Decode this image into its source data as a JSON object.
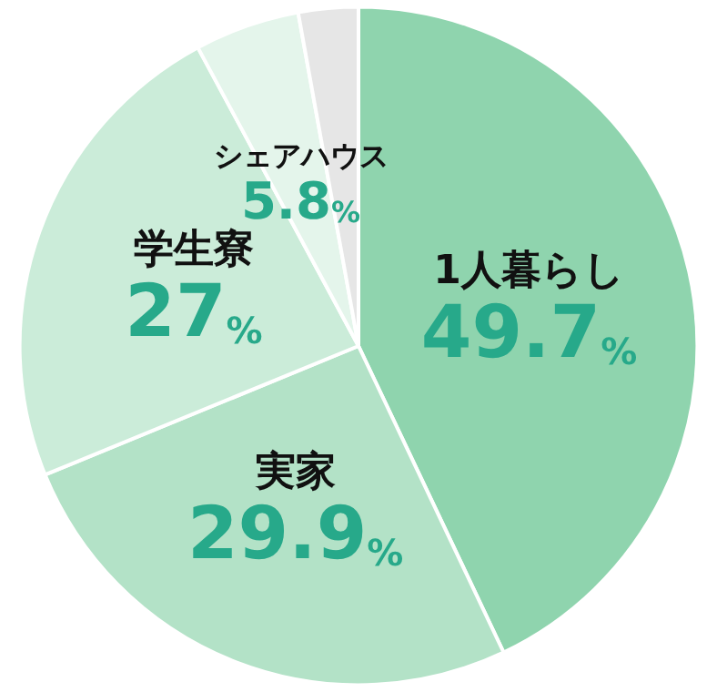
{
  "chart_data": {
    "type": "pie",
    "categories": [
      "1人暮らし",
      "実家",
      "学生寮",
      "シェアハウス",
      null
    ],
    "values": [
      49.7,
      29.9,
      27,
      5.8,
      3.3
    ],
    "value_labels": [
      "49.7%",
      "29.9%",
      "27%",
      "5.8%",
      null
    ],
    "colors": [
      "#8fd4ae",
      "#b3e2c7",
      "#cbecd9",
      "#e4f5eb",
      "#e6e6e6"
    ],
    "legend": false
  }
}
